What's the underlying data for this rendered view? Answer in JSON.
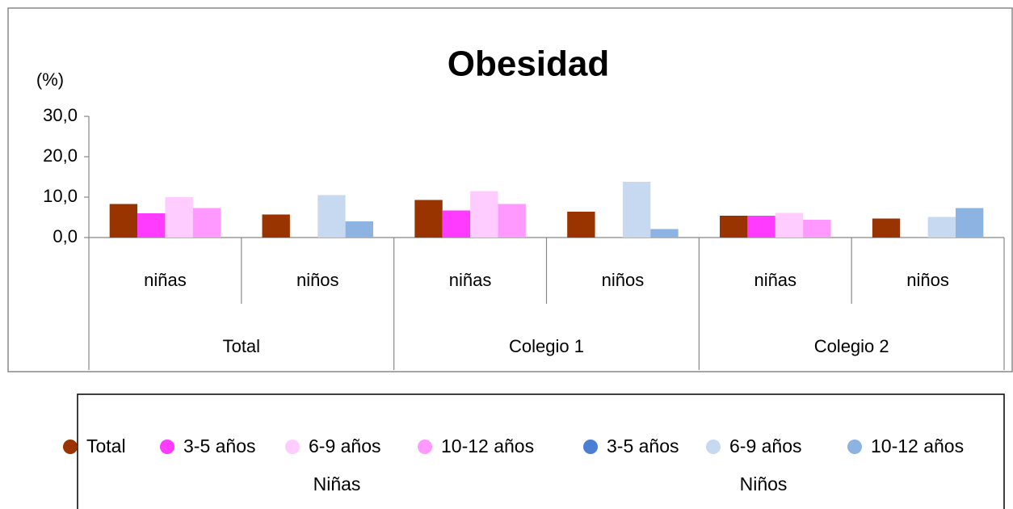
{
  "chart_data": {
    "type": "bar",
    "title": "Obesidad",
    "y_label": "(%)",
    "categories": [
      "niñas",
      "niños",
      "niñas",
      "niños",
      "niñas",
      "niños"
    ],
    "groups": [
      "Total",
      "Colegio 1",
      "Colegio 2"
    ],
    "series": [
      {
        "name": "Total",
        "color": "#993300",
        "values": [
          8.3,
          5.7,
          9.3,
          6.4,
          5.4,
          4.7
        ]
      },
      {
        "name": "3-5 años",
        "color": "#ff3bff",
        "values": [
          6.0,
          null,
          6.7,
          null,
          5.4,
          null
        ]
      },
      {
        "name": "6-9 años",
        "color": "#ffccff",
        "values": [
          10.0,
          null,
          11.5,
          null,
          6.1,
          null
        ]
      },
      {
        "name": "10-12 años",
        "color": "#ff99ff",
        "values": [
          7.3,
          null,
          8.3,
          null,
          4.4,
          null
        ]
      },
      {
        "name": "3-5 años",
        "color": "#4a7fd4",
        "values": [
          null,
          0,
          null,
          0,
          null,
          0
        ]
      },
      {
        "name": "6-9 años",
        "color": "#c6d9f1",
        "values": [
          null,
          10.5,
          null,
          13.8,
          null,
          5.1
        ]
      },
      {
        "name": "10-12 años",
        "color": "#8db3e2",
        "values": [
          null,
          4.0,
          null,
          2.1,
          null,
          7.3
        ]
      }
    ],
    "legend_groups": [
      "Niñas",
      "Niños"
    ],
    "ylim": [
      0,
      30
    ],
    "yticks": [
      {
        "value": 0,
        "label": "0,0"
      },
      {
        "value": 10,
        "label": "10,0"
      },
      {
        "value": 20,
        "label": "20,0"
      },
      {
        "value": 30,
        "label": "30,0"
      }
    ],
    "grid": false
  }
}
